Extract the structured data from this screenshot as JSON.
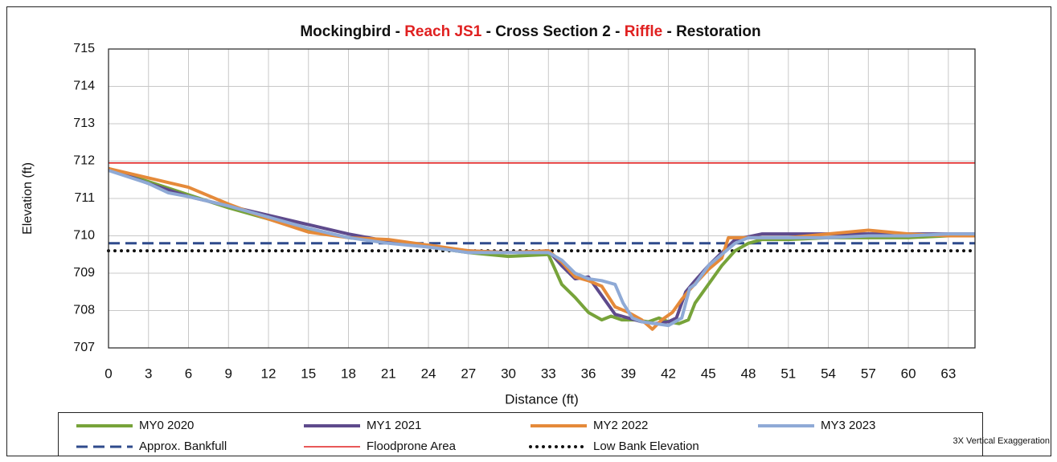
{
  "chart_data": {
    "type": "line",
    "title_parts": [
      {
        "text": "Mockingbird - ",
        "color": "#111111"
      },
      {
        "text": "Reach JS1",
        "color": "#e02020"
      },
      {
        "text": " - Cross Section 2 - ",
        "color": "#111111"
      },
      {
        "text": "Riffle",
        "color": "#e02020"
      },
      {
        "text": " - Restoration",
        "color": "#111111"
      }
    ],
    "x_label": "Distance (ft)",
    "y_label": "Elevation (ft)",
    "annotation": "3X Vertical Exaggeration",
    "xlim": [
      0,
      65
    ],
    "xticks": [
      0,
      3,
      6,
      9,
      12,
      15,
      18,
      21,
      24,
      27,
      30,
      33,
      36,
      39,
      42,
      45,
      48,
      51,
      54,
      57,
      60,
      63
    ],
    "ylim": [
      707,
      715
    ],
    "yticks": [
      707,
      708,
      709,
      710,
      711,
      712,
      713,
      714,
      715
    ],
    "grid": true,
    "series": [
      {
        "name": "MY0 2020",
        "color": "#77a33a",
        "x": [
          0,
          3,
          6,
          9,
          12,
          15,
          18,
          21,
          24,
          27,
          30,
          33,
          34,
          35,
          36,
          37,
          37.7,
          38.5,
          39.5,
          40.5,
          41.3,
          42,
          42.8,
          43.5,
          44,
          45,
          46,
          47,
          48,
          49,
          51,
          54,
          57,
          60,
          63,
          65
        ],
        "values": [
          711.8,
          711.45,
          711.1,
          710.75,
          710.45,
          710.15,
          709.95,
          709.85,
          709.7,
          709.55,
          709.45,
          709.5,
          708.7,
          708.35,
          707.95,
          707.75,
          707.85,
          707.75,
          707.75,
          707.7,
          707.8,
          707.7,
          707.65,
          707.75,
          708.2,
          708.7,
          709.2,
          709.6,
          709.8,
          709.9,
          709.9,
          709.95,
          709.95,
          709.95,
          710.0,
          710.0
        ]
      },
      {
        "name": "MY1 2021",
        "color": "#5e4a8c",
        "x": [
          0,
          3,
          6,
          9,
          12,
          15,
          18,
          21,
          24,
          27,
          30,
          33,
          34,
          35,
          36,
          37,
          38,
          39,
          40,
          41,
          42,
          42.6,
          43.3,
          44,
          45,
          46,
          47,
          49,
          51,
          54,
          57,
          60,
          63,
          65
        ],
        "values": [
          711.8,
          711.4,
          711.05,
          710.8,
          710.55,
          710.3,
          710.05,
          709.85,
          709.7,
          709.6,
          709.55,
          709.6,
          709.2,
          708.85,
          708.9,
          708.4,
          707.9,
          707.8,
          707.7,
          707.65,
          707.7,
          707.8,
          708.5,
          708.8,
          709.2,
          709.55,
          709.9,
          710.05,
          710.05,
          710.05,
          710.05,
          710.05,
          710.05,
          710.05
        ]
      },
      {
        "name": "MY2 2022",
        "color": "#e58a3a",
        "x": [
          0,
          3,
          6,
          9,
          12,
          15,
          18,
          21,
          24,
          27,
          30,
          33,
          34,
          35,
          36,
          37,
          38,
          39,
          40,
          40.8,
          41.5,
          42.3,
          43,
          43.7,
          45,
          46,
          46.5,
          48,
          51,
          54,
          57,
          60,
          63,
          65
        ],
        "values": [
          711.8,
          711.55,
          711.3,
          710.85,
          710.45,
          710.1,
          709.95,
          709.9,
          709.75,
          709.6,
          709.55,
          709.6,
          709.3,
          708.9,
          708.8,
          708.65,
          708.1,
          707.95,
          707.75,
          707.5,
          707.75,
          707.95,
          708.3,
          708.6,
          709.1,
          709.4,
          709.95,
          709.95,
          709.95,
          710.05,
          710.15,
          710.05,
          710.0,
          710.0
        ]
      },
      {
        "name": "MY3 2023",
        "color": "#8faad6",
        "x": [
          0,
          3,
          4.5,
          6,
          9,
          12,
          15,
          18,
          21,
          24,
          27,
          30,
          33,
          34,
          35,
          36,
          37,
          38,
          38.6,
          39.3,
          40,
          41,
          42,
          43,
          43.6,
          44,
          45,
          46,
          47,
          48,
          51,
          54,
          57,
          60,
          63,
          65
        ],
        "values": [
          711.75,
          711.4,
          711.15,
          711.05,
          710.8,
          710.5,
          710.2,
          709.95,
          709.8,
          709.7,
          709.55,
          709.55,
          709.55,
          709.35,
          709.0,
          708.85,
          708.8,
          708.7,
          708.2,
          707.8,
          707.7,
          707.65,
          707.6,
          707.8,
          708.6,
          708.7,
          709.2,
          709.5,
          709.8,
          709.95,
          709.95,
          709.95,
          710.0,
          710.0,
          710.05,
          710.05
        ]
      }
    ],
    "reference_lines": [
      {
        "name": "Approx. Bankfull",
        "color": "#2f4b8c",
        "style": "dashed",
        "value": 709.8
      },
      {
        "name": "Floodprone Area",
        "color": "#e02020",
        "style": "solid",
        "value": 711.95
      },
      {
        "name": "Low Bank Elevation",
        "color": "#111111",
        "style": "dotted",
        "value": 709.6
      }
    ]
  }
}
